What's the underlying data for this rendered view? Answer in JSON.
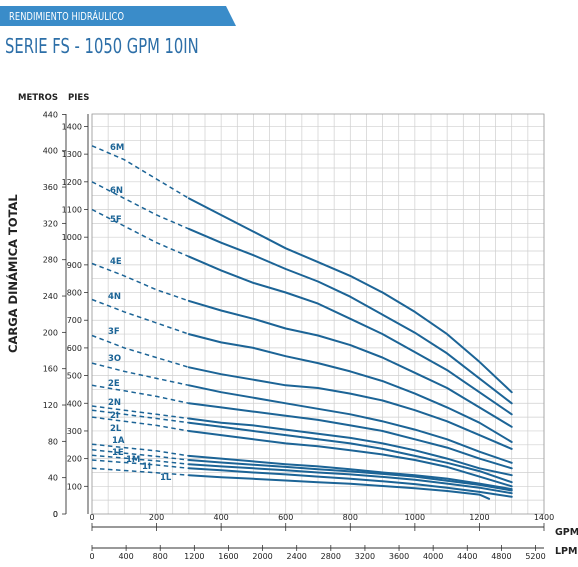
{
  "header": {
    "banner_label": "RENDIMIENTO HIDRÁULICO",
    "title": "SERIE FS - 1050 GPM 10IN"
  },
  "colors": {
    "accent": "#3a8cc9",
    "title": "#2d6fa8",
    "curve": "#1c6496",
    "grid": "#cfcfcf",
    "axis_text": "#222222"
  },
  "chart_data": {
    "type": "line",
    "ylabel": "CARGA DINÁMICA TOTAL",
    "y_unit_left": "METROS",
    "y_unit_right": "PIES",
    "y_left_ticks": [
      0,
      40,
      80,
      120,
      160,
      200,
      240,
      280,
      320,
      360,
      400,
      440
    ],
    "y_right_ticks": [
      100,
      200,
      300,
      400,
      500,
      600,
      700,
      800,
      900,
      1000,
      1100,
      1200,
      1300,
      1400
    ],
    "ylim_ft": [
      0,
      1445
    ],
    "x_unit_gpm": "GPM",
    "x_unit_lpm": "LPM",
    "x_gpm_ticks": [
      0,
      200,
      400,
      600,
      800,
      1000,
      1200,
      1400
    ],
    "x_lpm_ticks": [
      0,
      400,
      800,
      1200,
      1600,
      2000,
      2400,
      2800,
      3200,
      3600,
      4000,
      4400,
      4800,
      5200
    ],
    "xlim_gpm": [
      0,
      1400
    ],
    "recommended_range_start_gpm": 300,
    "grid": true,
    "series": [
      {
        "name": "6M",
        "x": [
          0,
          100,
          200,
          300,
          400,
          500,
          600,
          700,
          800,
          900,
          1000,
          1100,
          1200,
          1300
        ],
        "y": [
          1330,
          1280,
          1210,
          1140,
          1080,
          1020,
          960,
          910,
          860,
          800,
          730,
          650,
          550,
          440
        ]
      },
      {
        "name": "6N",
        "x": [
          0,
          100,
          200,
          300,
          400,
          500,
          600,
          700,
          800,
          900,
          1000,
          1100,
          1200,
          1300
        ],
        "y": [
          1200,
          1140,
          1080,
          1030,
          980,
          935,
          885,
          840,
          785,
          720,
          655,
          580,
          490,
          400
        ]
      },
      {
        "name": "5F",
        "x": [
          0,
          100,
          200,
          300,
          400,
          500,
          600,
          700,
          800,
          900,
          1000,
          1100,
          1200,
          1300
        ],
        "y": [
          1100,
          1040,
          980,
          930,
          880,
          835,
          800,
          760,
          705,
          650,
          585,
          520,
          440,
          360
        ]
      },
      {
        "name": "4E",
        "x": [
          0,
          100,
          200,
          300,
          400,
          500,
          600,
          700,
          800,
          900,
          1000,
          1100,
          1200,
          1300
        ],
        "y": [
          905,
          860,
          810,
          770,
          735,
          705,
          670,
          645,
          610,
          565,
          510,
          455,
          385,
          315
        ]
      },
      {
        "name": "4N",
        "x": [
          0,
          100,
          200,
          300,
          400,
          500,
          600,
          700,
          800,
          900,
          1000,
          1100,
          1200,
          1300
        ],
        "y": [
          775,
          730,
          690,
          650,
          620,
          600,
          570,
          545,
          515,
          480,
          435,
          385,
          330,
          260
        ]
      },
      {
        "name": "3F",
        "x": [
          0,
          100,
          200,
          300,
          400,
          500,
          600,
          700,
          800,
          900,
          1000,
          1100,
          1200,
          1300
        ],
        "y": [
          645,
          600,
          565,
          530,
          505,
          485,
          465,
          455,
          435,
          410,
          375,
          335,
          285,
          235
        ]
      },
      {
        "name": "3O",
        "x": [
          0,
          100,
          200,
          300,
          400,
          500,
          600,
          700,
          800,
          900,
          1000,
          1100,
          1200,
          1300
        ],
        "y": [
          545,
          515,
          490,
          465,
          440,
          420,
          400,
          380,
          360,
          335,
          305,
          270,
          225,
          185
        ]
      },
      {
        "name": "2E",
        "x": [
          0,
          100,
          200,
          300,
          400,
          500,
          600,
          700,
          800,
          900,
          1000,
          1100,
          1200,
          1300
        ],
        "y": [
          465,
          445,
          425,
          400,
          385,
          370,
          355,
          340,
          320,
          300,
          270,
          240,
          200,
          165
        ]
      },
      {
        "name": "2N",
        "x": [
          0,
          100,
          200,
          300,
          400,
          500,
          600,
          700,
          800,
          900,
          1000,
          1100,
          1200,
          1300
        ],
        "y": [
          390,
          375,
          360,
          345,
          330,
          320,
          305,
          290,
          275,
          255,
          230,
          200,
          165,
          140
        ]
      },
      {
        "name": "2I",
        "x": [
          0,
          100,
          200,
          300,
          400,
          500,
          600,
          700,
          800,
          900,
          1000,
          1100,
          1200,
          1300
        ],
        "y": [
          375,
          360,
          345,
          330,
          315,
          300,
          285,
          270,
          255,
          235,
          210,
          185,
          155,
          115
        ]
      },
      {
        "name": "2L",
        "x": [
          0,
          100,
          200,
          300,
          400,
          500,
          600,
          700,
          800,
          900,
          1000,
          1100,
          1200,
          1300
        ],
        "y": [
          350,
          335,
          320,
          300,
          285,
          270,
          255,
          245,
          230,
          215,
          195,
          170,
          135,
          100
        ]
      },
      {
        "name": "1A",
        "x": [
          0,
          100,
          200,
          300,
          400,
          500,
          600,
          700,
          800,
          900,
          1000,
          1100,
          1200,
          1300
        ],
        "y": [
          252,
          240,
          228,
          210,
          200,
          190,
          180,
          172,
          162,
          150,
          140,
          128,
          110,
          90
        ]
      },
      {
        "name": "1E",
        "x": [
          0,
          100,
          200,
          300,
          400,
          500,
          600,
          700,
          800,
          900,
          1000,
          1100,
          1200,
          1300
        ],
        "y": [
          232,
          220,
          208,
          195,
          186,
          178,
          170,
          162,
          154,
          145,
          135,
          120,
          105,
          85
        ]
      },
      {
        "name": "1M",
        "x": [
          0,
          100,
          200,
          300,
          400,
          500,
          600,
          700,
          800,
          900,
          1000,
          1100,
          1200,
          1300
        ],
        "y": [
          212,
          202,
          192,
          180,
          172,
          165,
          158,
          150,
          143,
          134,
          124,
          110,
          95,
          75
        ]
      },
      {
        "name": "1I",
        "x": [
          0,
          100,
          200,
          300,
          400,
          500,
          600,
          700,
          800,
          900,
          1000,
          1100,
          1200,
          1300
        ],
        "y": [
          195,
          186,
          177,
          165,
          158,
          150,
          143,
          135,
          127,
          118,
          108,
          95,
          80,
          62
        ]
      },
      {
        "name": "1L",
        "x": [
          0,
          100,
          200,
          300,
          400,
          500,
          600,
          700,
          800,
          900,
          1000,
          1100,
          1200,
          1230
        ],
        "y": [
          165,
          157,
          149,
          140,
          133,
          127,
          121,
          115,
          109,
          101,
          93,
          83,
          70,
          55
        ]
      }
    ]
  }
}
